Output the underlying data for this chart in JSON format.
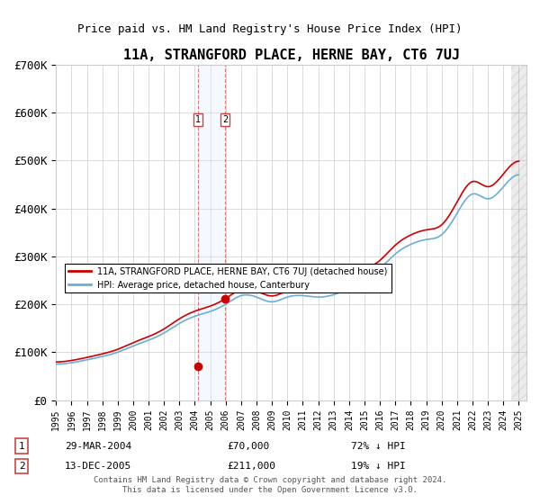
{
  "title": "11A, STRANGFORD PLACE, HERNE BAY, CT6 7UJ",
  "subtitle": "Price paid vs. HM Land Registry's House Price Index (HPI)",
  "legend_label_red": "11A, STRANGFORD PLACE, HERNE BAY, CT6 7UJ (detached house)",
  "legend_label_blue": "HPI: Average price, detached house, Canterbury",
  "transaction1": {
    "label": "1",
    "date": "29-MAR-2004",
    "price": "£70,000",
    "hpi": "72% ↓ HPI"
  },
  "transaction2": {
    "label": "2",
    "date": "13-DEC-2005",
    "price": "£211,000",
    "hpi": "19% ↓ HPI"
  },
  "footer": "Contains HM Land Registry data © Crown copyright and database right 2024.\nThis data is licensed under the Open Government Licence v3.0.",
  "hpi_color": "#6aaed6",
  "price_color": "#cc0000",
  "shade_color": "#ddeeff",
  "marker_color": "#cc0000",
  "ylim": [
    0,
    700000
  ],
  "yticks": [
    0,
    100000,
    200000,
    300000,
    400000,
    500000,
    600000,
    700000
  ],
  "ytick_labels": [
    "£0",
    "£100K",
    "£200K",
    "£300K",
    "£400K",
    "£500K",
    "£600K",
    "£700K"
  ],
  "hpi_years": [
    1995,
    1996,
    1997,
    1998,
    1999,
    2000,
    2001,
    2002,
    2003,
    2004,
    2005,
    2006,
    2007,
    2008,
    2009,
    2010,
    2011,
    2012,
    2013,
    2014,
    2015,
    2016,
    2017,
    2018,
    2019,
    2020,
    2021,
    2022,
    2023,
    2024,
    2025
  ],
  "hpi_values": [
    75000,
    78000,
    84000,
    91000,
    100000,
    113000,
    125000,
    140000,
    160000,
    175000,
    185000,
    200000,
    218000,
    215000,
    205000,
    215000,
    218000,
    215000,
    220000,
    235000,
    255000,
    275000,
    305000,
    325000,
    335000,
    345000,
    390000,
    430000,
    420000,
    445000,
    470000
  ],
  "sale_year1": 2004.23,
  "sale_price1": 70000,
  "sale_year2": 2005.95,
  "sale_price2": 211000,
  "xmin": 1995,
  "xmax": 2025.5
}
